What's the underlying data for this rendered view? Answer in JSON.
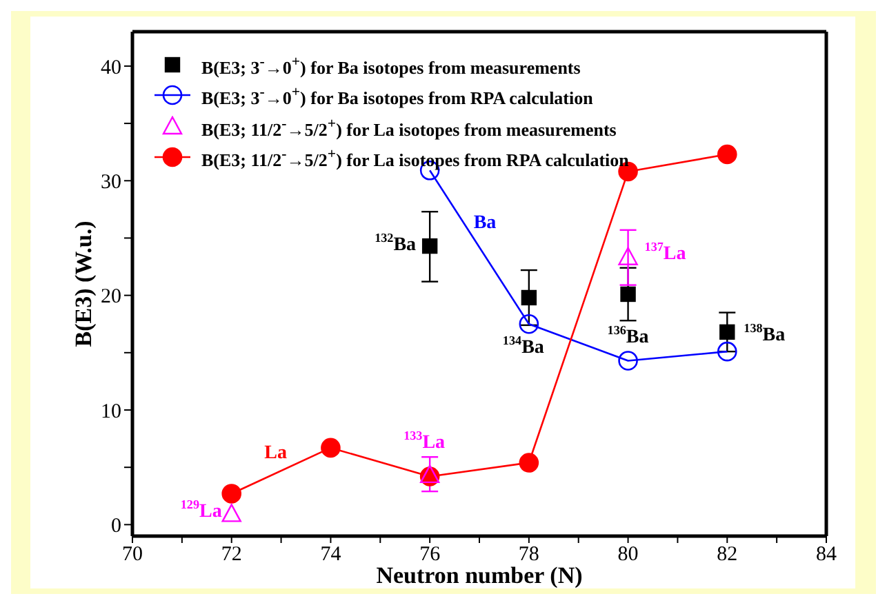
{
  "chart_data": {
    "type": "scatter",
    "xlabel": "Neutron number (N)",
    "ylabel": "B(E3) (W.u.)",
    "xlim": [
      70,
      84
    ],
    "xticks": [
      70,
      {
        "value": 71,
        "label": null
      },
      72,
      {
        "value": 73,
        "label": null
      },
      74,
      {
        "value": 75,
        "label": null
      },
      76,
      {
        "value": 77,
        "label": null
      },
      78,
      {
        "value": 79,
        "label": null
      },
      80,
      {
        "value": 81,
        "label": null
      },
      82,
      {
        "value": 83,
        "label": null
      },
      84
    ],
    "ylim": [
      -1,
      43
    ],
    "yticks": [
      0,
      {
        "value": 5,
        "label": null
      },
      10,
      {
        "value": 15,
        "label": null
      },
      20,
      {
        "value": 25,
        "label": null
      },
      30,
      {
        "value": 35,
        "label": null
      },
      40
    ],
    "grid": false,
    "legend": "top left",
    "series": [
      {
        "name": "B(E3; 3$^{-}$→0$^{+}$) for Ba isotopes from measurements",
        "marker": "square",
        "color": "#000000",
        "x": [
          76,
          78,
          80,
          82
        ],
        "values": [
          24.3,
          19.8,
          20.1,
          16.8
        ],
        "errors": [
          [
            21.2,
            27.3
          ],
          [
            17.4,
            22.2
          ],
          [
            17.8,
            22.4
          ],
          [
            15.1,
            18.5
          ]
        ]
      },
      {
        "name": "B(E3; 3$^{-}$→0$^{+}$) for Ba isotopes from RPA calculation",
        "type": "line",
        "marker": "circle",
        "color": "#0000ff",
        "x": [
          76,
          78,
          80,
          82
        ],
        "values": [
          30.9,
          17.5,
          14.3,
          15.1
        ]
      },
      {
        "name": "B(E3; 11/2$^{-}$→5/2$^{+}$) for La isotopes from measurements",
        "marker": "triangle",
        "color": "#ff00ff",
        "x": [
          72,
          76,
          80
        ],
        "values": [
          0.9,
          4.3,
          23.3
        ],
        "errors": [
          null,
          [
            2.9,
            5.9
          ],
          [
            20.9,
            25.7
          ]
        ]
      },
      {
        "name": "B(E3; 11/2$^{-}$→5/2$^{+}$) for La isotopes from RPA calculation",
        "type": "line",
        "marker": "circle",
        "color": "#ff0000",
        "x": [
          72,
          74,
          76,
          78,
          80,
          82
        ],
        "values": [
          2.7,
          6.7,
          4.2,
          5.4,
          30.8,
          32.3
        ]
      }
    ],
    "annotations": [
      {
        "text": "$^{132}$Ba",
        "x": 76,
        "y": 24.3
      },
      {
        "text": "$^{134}$Ba",
        "x": 78,
        "y": 19.8
      },
      {
        "text": "$^{136}$Ba",
        "x": 80,
        "y": 20.1
      },
      {
        "text": "$^{138}$Ba",
        "x": 82,
        "y": 16.8
      },
      {
        "text": "Ba",
        "x": 77,
        "y": 24.2
      },
      {
        "text": "La",
        "x": 73,
        "y": 4.7
      },
      {
        "text": "$^{129}$La",
        "x": 72,
        "y": 0.9
      },
      {
        "text": "$^{133}$La",
        "x": 76,
        "y": 4.3
      },
      {
        "text": "$^{137}$La",
        "x": 80,
        "y": 23.3
      }
    ]
  }
}
